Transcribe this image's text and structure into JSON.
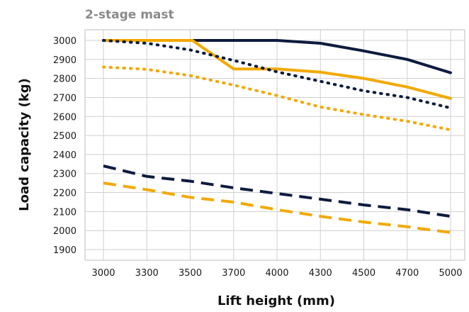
{
  "chart_data": {
    "type": "line",
    "title": "2-stage mast",
    "xlabel": "Lift height (mm)",
    "ylabel": "Load capacity (kg)",
    "categories": [
      "3000",
      "3300",
      "3500",
      "3700",
      "4000",
      "4300",
      "4500",
      "4700",
      "5000"
    ],
    "yticks": [
      "3000",
      "2900",
      "2800",
      "2700",
      "2600",
      "2500",
      "2400",
      "2300",
      "2200",
      "2100",
      "2000",
      "1900"
    ],
    "ylim": [
      1850,
      3030
    ],
    "grid": true,
    "legend": "none",
    "series": [
      {
        "style": "solid",
        "color": "#0d1b3e",
        "values": [
          3000,
          3000,
          3000,
          3000,
          3000,
          2985,
          2945,
          2900,
          2830
        ]
      },
      {
        "style": "solid",
        "color": "#f2a900",
        "points": [
          [
            0,
            3000
          ],
          [
            2.05,
            3000
          ],
          [
            3.0,
            2850
          ],
          [
            4.0,
            2850
          ],
          [
            5.0,
            2833
          ],
          [
            6.0,
            2800
          ],
          [
            7.0,
            2755
          ],
          [
            8.0,
            2695
          ]
        ]
      },
      {
        "style": "dotted",
        "color": "#0d1b3e",
        "values": [
          3000,
          2985,
          2950,
          2895,
          2835,
          2785,
          2735,
          2700,
          2645
        ]
      },
      {
        "style": "dotted",
        "color": "#f2a900",
        "values": [
          2860,
          2848,
          2815,
          2765,
          2710,
          2650,
          2610,
          2575,
          2530
        ]
      },
      {
        "style": "dashed",
        "color": "#0d1b3e",
        "values": [
          2340,
          2285,
          2260,
          2225,
          2195,
          2165,
          2135,
          2110,
          2075
        ]
      },
      {
        "style": "dashed",
        "color": "#f2a900",
        "values": [
          2250,
          2215,
          2175,
          2150,
          2110,
          2075,
          2045,
          2020,
          1990
        ]
      }
    ]
  }
}
